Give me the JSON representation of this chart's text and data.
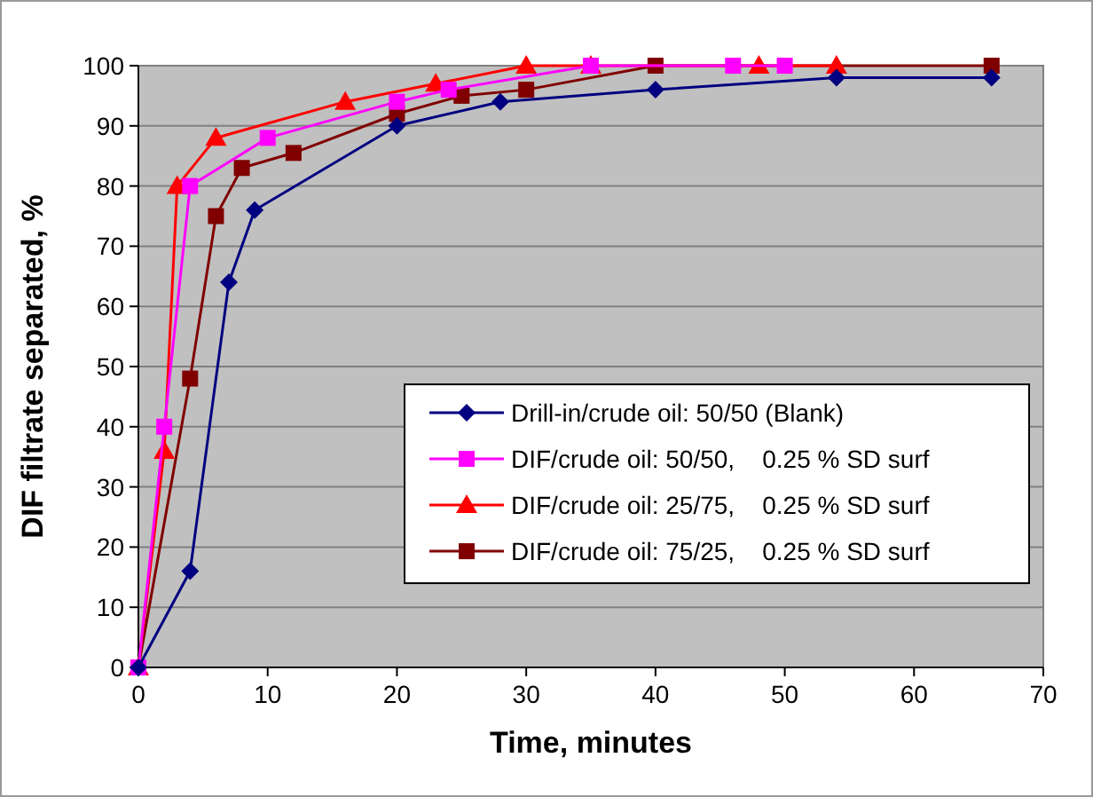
{
  "chart_data": {
    "type": "line",
    "xlabel": "Time, minutes",
    "ylabel": "DIF filtrate separated, %",
    "xlim": [
      0,
      70
    ],
    "xticks": [
      0,
      10,
      20,
      30,
      40,
      50,
      60,
      70
    ],
    "ylim": [
      0,
      100
    ],
    "yticks": [
      0,
      10,
      20,
      30,
      40,
      50,
      60,
      70,
      80,
      90,
      100
    ],
    "grid": "y",
    "legend": "bottom right",
    "series": [
      {
        "name": "Drill-in/crude oil: 50/50 (Blank)",
        "color": "#000080",
        "marker": "diamond",
        "x": [
          0,
          4,
          7,
          9,
          20,
          28,
          40,
          54,
          66
        ],
        "values": [
          0,
          16,
          64,
          76,
          90,
          94,
          96,
          98,
          98
        ]
      },
      {
        "name": "DIF/crude oil: 50/50,    0.25 % SD surf",
        "color": "#ff00ff",
        "marker": "square",
        "x": [
          0,
          2,
          4,
          10,
          20,
          24,
          35,
          46,
          50
        ],
        "values": [
          0,
          40,
          80,
          88,
          94,
          96,
          100,
          100,
          100
        ]
      },
      {
        "name": "DIF/crude oil: 25/75,    0.25 % SD surf",
        "color": "#ff0000",
        "marker": "triangle",
        "x": [
          0,
          2,
          3,
          6,
          16,
          23,
          30,
          35,
          48,
          54
        ],
        "values": [
          0,
          36,
          80,
          88,
          94,
          97,
          100,
          100,
          100,
          100
        ]
      },
      {
        "name": "DIF/crude oil: 75/25,    0.25 % SD surf",
        "color": "#800000",
        "marker": "square",
        "x": [
          0,
          4,
          6,
          8,
          12,
          20,
          25,
          30,
          40,
          66
        ],
        "values": [
          0,
          48,
          75,
          83,
          85.5,
          92,
          95,
          96,
          100,
          100
        ]
      }
    ]
  }
}
